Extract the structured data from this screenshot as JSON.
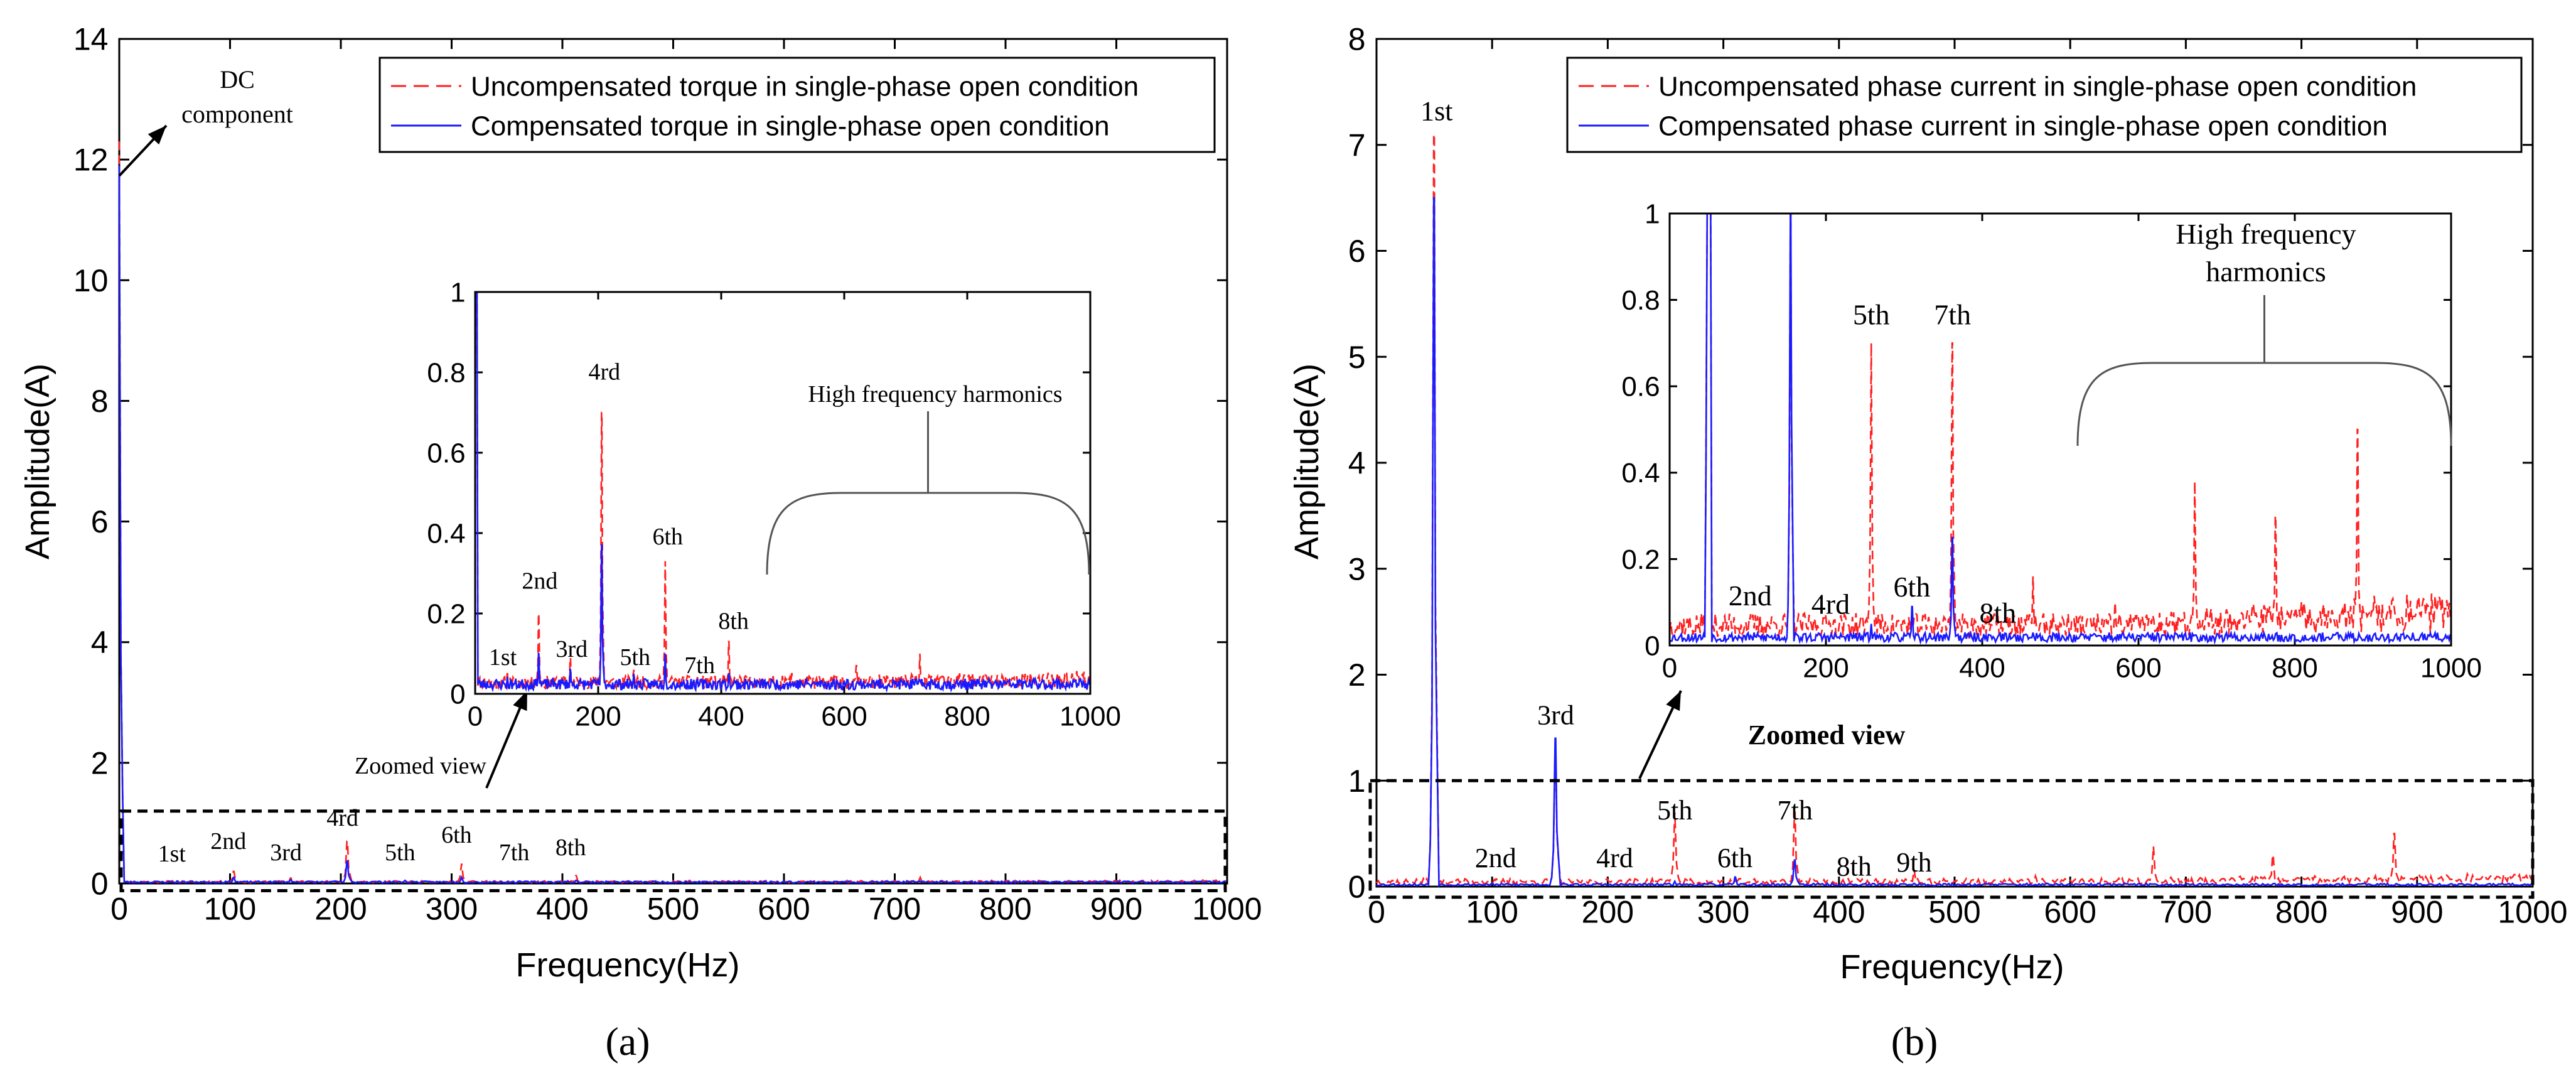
{
  "colors": {
    "uncompensated": "#ff2020",
    "compensated": "#1a1aff",
    "axis": "#000000",
    "zoom_box": "#000000"
  },
  "chart_data": [
    {
      "panel": "a",
      "type": "line",
      "caption": "(a)",
      "xlabel": "Frequency(Hz)",
      "ylabel": "Amplitude(A)",
      "xlim": [
        0,
        1000
      ],
      "ylim": [
        0,
        14
      ],
      "xticks": [
        0,
        100,
        200,
        300,
        400,
        500,
        600,
        700,
        800,
        900,
        1000
      ],
      "yticks": [
        0,
        2,
        4,
        6,
        8,
        10,
        12,
        14
      ],
      "legend": {
        "position": "top-right",
        "entries": [
          "Uncompensated torque in single-phase open condition",
          "Compensated torque in single-phase open condition"
        ]
      },
      "series": [
        {
          "name": "Uncompensated torque in single-phase open condition",
          "style": "dashed",
          "color_key": "uncompensated",
          "baseline": 0.03,
          "peaks": [
            [
              0,
              12.3
            ],
            [
              52,
              0.05
            ],
            [
              103,
              0.2
            ],
            [
              155,
              0.09
            ],
            [
              206,
              0.7
            ],
            [
              258,
              0.06
            ],
            [
              309,
              0.33
            ],
            [
              361,
              0.04
            ],
            [
              412,
              0.13
            ],
            [
              515,
              0.05
            ],
            [
              620,
              0.07
            ],
            [
              723,
              0.1
            ],
            [
              825,
              0.04
            ],
            [
              930,
              0.04
            ]
          ]
        },
        {
          "name": "Compensated torque in single-phase open condition",
          "style": "solid",
          "color_key": "compensated",
          "baseline": 0.025,
          "peaks": [
            [
              0,
              11.9
            ],
            [
              52,
              0.04
            ],
            [
              103,
              0.1
            ],
            [
              155,
              0.06
            ],
            [
              206,
              0.37
            ],
            [
              258,
              0.05
            ],
            [
              309,
              0.1
            ],
            [
              361,
              0.03
            ],
            [
              412,
              0.05
            ]
          ]
        }
      ],
      "annotations": {
        "dc": "DC component",
        "zoomed": "Zoomed view",
        "harmonics": [
          {
            "label": "1st",
            "x": 52
          },
          {
            "label": "2nd",
            "x": 103
          },
          {
            "label": "3rd",
            "x": 155
          },
          {
            "label": "4rd",
            "x": 206
          },
          {
            "label": "5th",
            "x": 258
          },
          {
            "label": "6th",
            "x": 309
          },
          {
            "label": "7th",
            "x": 361
          },
          {
            "label": "8th",
            "x": 412
          }
        ]
      },
      "inset": {
        "xlim": [
          0,
          1000
        ],
        "ylim": [
          0,
          1
        ],
        "xticks": [
          0,
          200,
          400,
          600,
          800,
          1000
        ],
        "yticks": [
          0,
          0.2,
          0.4,
          0.6,
          0.8,
          1
        ],
        "high_freq_label": "High frequency harmonics",
        "harmonic_labels": [
          {
            "label": "1st",
            "x": 45,
            "y": 0.05
          },
          {
            "label": "2nd",
            "x": 105,
            "y": 0.24
          },
          {
            "label": "3rd",
            "x": 157,
            "y": 0.07
          },
          {
            "label": "4rd",
            "x": 210,
            "y": 0.76
          },
          {
            "label": "5th",
            "x": 260,
            "y": 0.05
          },
          {
            "label": "6th",
            "x": 313,
            "y": 0.35
          },
          {
            "label": "7th",
            "x": 365,
            "y": 0.03
          },
          {
            "label": "8th",
            "x": 420,
            "y": 0.14
          }
        ]
      }
    },
    {
      "panel": "b",
      "type": "line",
      "caption": "(b)",
      "xlabel": "Frequency(Hz)",
      "ylabel": "Amplitude(A)",
      "xlim": [
        0,
        1000
      ],
      "ylim": [
        0,
        8
      ],
      "xticks": [
        0,
        100,
        200,
        300,
        400,
        500,
        600,
        700,
        800,
        900,
        1000
      ],
      "yticks": [
        0,
        1,
        2,
        3,
        4,
        5,
        6,
        7,
        8
      ],
      "legend": {
        "position": "top-right",
        "entries": [
          "Uncompensated phase current in single-phase open condition",
          "Compensated phase current in single-phase open condition"
        ]
      },
      "series": [
        {
          "name": "Uncompensated phase current in single-phase open condition",
          "style": "dashed",
          "color_key": "uncompensated",
          "baseline": 0.05,
          "peaks": [
            [
              50,
              7.1
            ],
            [
              103,
              0.06
            ],
            [
              155,
              1.3
            ],
            [
              205,
              0.05
            ],
            [
              258,
              0.7
            ],
            [
              310,
              0.05
            ],
            [
              362,
              0.7
            ],
            [
              465,
              0.16
            ],
            [
              570,
              0.1
            ],
            [
              672,
              0.38
            ],
            [
              775,
              0.3
            ],
            [
              880,
              0.5
            ]
          ]
        },
        {
          "name": "Compensated phase current in single-phase open condition",
          "style": "solid",
          "color_key": "compensated",
          "baseline": 0.02,
          "peaks": [
            [
              50,
              6.5
            ],
            [
              155,
              1.4
            ],
            [
              258,
              0.05
            ],
            [
              310,
              0.09
            ],
            [
              362,
              0.25
            ],
            [
              465,
              0.03
            ]
          ]
        }
      ],
      "annotations": {
        "zoomed": "Zoomed view",
        "harmonics": [
          {
            "label": "1st",
            "x": 52,
            "y": 7.15
          },
          {
            "label": "2nd",
            "x": 103,
            "y": 0.1
          },
          {
            "label": "3rd",
            "x": 155,
            "y": 1.45
          },
          {
            "label": "4rd",
            "x": 206,
            "y": 0.1
          },
          {
            "label": "5th",
            "x": 258,
            "y": 0.55
          },
          {
            "label": "6th",
            "x": 310,
            "y": 0.1
          },
          {
            "label": "7th",
            "x": 362,
            "y": 0.55
          },
          {
            "label": "8th",
            "x": 413,
            "y": 0.02
          },
          {
            "label": "9th",
            "x": 465,
            "y": 0.06
          }
        ]
      },
      "inset": {
        "xlim": [
          0,
          1000
        ],
        "ylim": [
          0,
          1
        ],
        "xticks": [
          0,
          200,
          400,
          600,
          800,
          1000
        ],
        "yticks": [
          0,
          0.2,
          0.4,
          0.6,
          0.8,
          1
        ],
        "high_freq_label": "High frequency harmonics",
        "harmonic_labels": [
          {
            "label": "2nd",
            "x": 103,
            "y": 0.07
          },
          {
            "label": "4rd",
            "x": 206,
            "y": 0.05
          },
          {
            "label": "5th",
            "x": 258,
            "y": 0.72
          },
          {
            "label": "6th",
            "x": 310,
            "y": 0.09
          },
          {
            "label": "7th",
            "x": 362,
            "y": 0.72
          },
          {
            "label": "8th",
            "x": 420,
            "y": 0.03
          }
        ]
      }
    }
  ]
}
